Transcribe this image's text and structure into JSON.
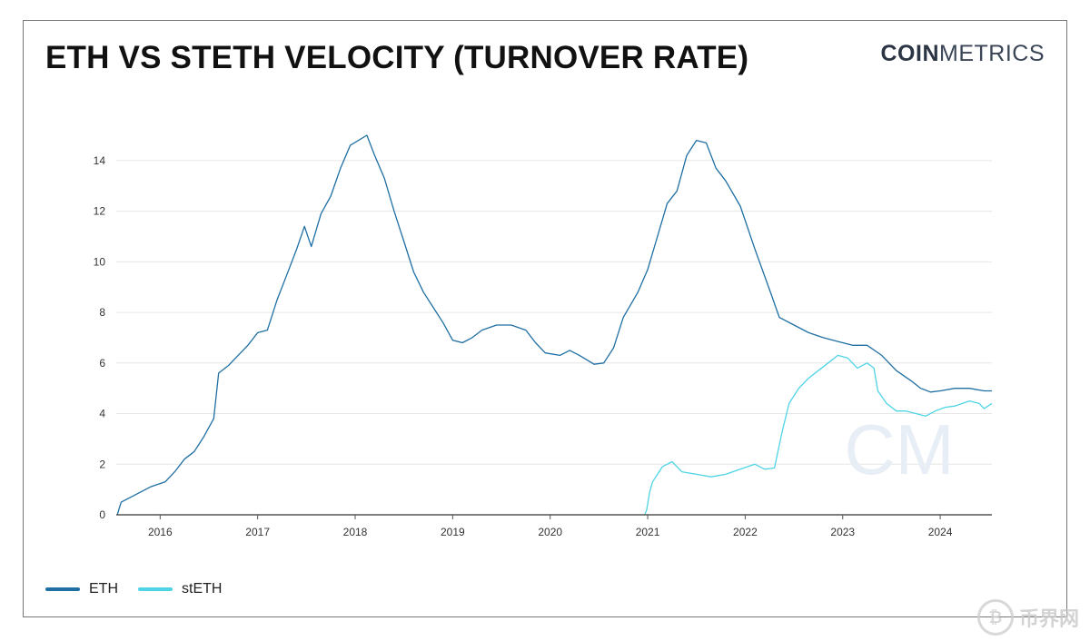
{
  "header": {
    "title": "ETH VS STETH VELOCITY (TURNOVER RATE)",
    "logo_bold": "COIN",
    "logo_light": "METRICS"
  },
  "watermarks": {
    "chart_mark": "CM",
    "corner_text": "币界网"
  },
  "colors": {
    "eth": "#1f6fa3",
    "steth": "#4fd4e6",
    "grid": "#e6e6e6",
    "axis": "#555555"
  },
  "chart_data": {
    "type": "line",
    "title": "ETH VS STETH VELOCITY (TURNOVER RATE)",
    "xlabel": "",
    "ylabel": "",
    "xlim": [
      2015.55,
      2024.53
    ],
    "ylim": [
      0,
      15
    ],
    "yticks": [
      0,
      2,
      4,
      6,
      8,
      10,
      12,
      14
    ],
    "xticks": [
      2016,
      2017,
      2018,
      2019,
      2020,
      2021,
      2022,
      2023,
      2024
    ],
    "grid": true,
    "legend_position": "bottom-left",
    "series": [
      {
        "name": "ETH",
        "color": "#1f6fa3",
        "points": [
          [
            2015.56,
            0
          ],
          [
            2015.6,
            0.5
          ],
          [
            2015.75,
            0.8
          ],
          [
            2015.9,
            1.1
          ],
          [
            2016.05,
            1.3
          ],
          [
            2016.15,
            1.7
          ],
          [
            2016.25,
            2.2
          ],
          [
            2016.35,
            2.5
          ],
          [
            2016.45,
            3.1
          ],
          [
            2016.55,
            3.8
          ],
          [
            2016.6,
            5.6
          ],
          [
            2016.7,
            5.9
          ],
          [
            2016.8,
            6.3
          ],
          [
            2016.9,
            6.7
          ],
          [
            2017.0,
            7.2
          ],
          [
            2017.1,
            7.3
          ],
          [
            2017.2,
            8.5
          ],
          [
            2017.3,
            9.5
          ],
          [
            2017.4,
            10.5
          ],
          [
            2017.48,
            11.4
          ],
          [
            2017.55,
            10.6
          ],
          [
            2017.65,
            11.9
          ],
          [
            2017.75,
            12.6
          ],
          [
            2017.85,
            13.7
          ],
          [
            2017.95,
            14.6
          ],
          [
            2018.12,
            15.0
          ],
          [
            2018.2,
            14.2
          ],
          [
            2018.3,
            13.3
          ],
          [
            2018.4,
            12.0
          ],
          [
            2018.5,
            10.8
          ],
          [
            2018.6,
            9.6
          ],
          [
            2018.7,
            8.8
          ],
          [
            2018.8,
            8.2
          ],
          [
            2018.9,
            7.6
          ],
          [
            2019.0,
            6.9
          ],
          [
            2019.1,
            6.8
          ],
          [
            2019.2,
            7.0
          ],
          [
            2019.3,
            7.3
          ],
          [
            2019.45,
            7.5
          ],
          [
            2019.6,
            7.5
          ],
          [
            2019.75,
            7.3
          ],
          [
            2019.85,
            6.8
          ],
          [
            2019.95,
            6.4
          ],
          [
            2020.1,
            6.3
          ],
          [
            2020.2,
            6.5
          ],
          [
            2020.3,
            6.3
          ],
          [
            2020.45,
            5.95
          ],
          [
            2020.55,
            6.0
          ],
          [
            2020.65,
            6.6
          ],
          [
            2020.75,
            7.8
          ],
          [
            2020.9,
            8.8
          ],
          [
            2021.0,
            9.7
          ],
          [
            2021.1,
            11.0
          ],
          [
            2021.2,
            12.3
          ],
          [
            2021.3,
            12.8
          ],
          [
            2021.4,
            14.2
          ],
          [
            2021.5,
            14.8
          ],
          [
            2021.6,
            14.7
          ],
          [
            2021.7,
            13.7
          ],
          [
            2021.8,
            13.2
          ],
          [
            2021.95,
            12.2
          ],
          [
            2022.1,
            10.5
          ],
          [
            2022.25,
            8.9
          ],
          [
            2022.35,
            7.8
          ],
          [
            2022.5,
            7.5
          ],
          [
            2022.65,
            7.2
          ],
          [
            2022.8,
            7.0
          ],
          [
            2022.95,
            6.85
          ],
          [
            2023.1,
            6.7
          ],
          [
            2023.25,
            6.7
          ],
          [
            2023.4,
            6.3
          ],
          [
            2023.55,
            5.7
          ],
          [
            2023.7,
            5.3
          ],
          [
            2023.8,
            5.0
          ],
          [
            2023.9,
            4.85
          ],
          [
            2024.0,
            4.9
          ],
          [
            2024.15,
            5.0
          ],
          [
            2024.3,
            5.0
          ],
          [
            2024.45,
            4.9
          ],
          [
            2024.53,
            4.9
          ]
        ]
      },
      {
        "name": "stETH",
        "color": "#4fd4e6",
        "points": [
          [
            2020.97,
            0
          ],
          [
            2020.99,
            0.2
          ],
          [
            2021.02,
            0.9
          ],
          [
            2021.05,
            1.3
          ],
          [
            2021.1,
            1.6
          ],
          [
            2021.15,
            1.9
          ],
          [
            2021.25,
            2.1
          ],
          [
            2021.35,
            1.7
          ],
          [
            2021.5,
            1.6
          ],
          [
            2021.65,
            1.5
          ],
          [
            2021.8,
            1.6
          ],
          [
            2021.95,
            1.8
          ],
          [
            2022.1,
            2.0
          ],
          [
            2022.2,
            1.8
          ],
          [
            2022.3,
            1.85
          ],
          [
            2022.38,
            3.3
          ],
          [
            2022.45,
            4.4
          ],
          [
            2022.55,
            5.0
          ],
          [
            2022.65,
            5.4
          ],
          [
            2022.75,
            5.7
          ],
          [
            2022.85,
            6.0
          ],
          [
            2022.95,
            6.3
          ],
          [
            2023.05,
            6.2
          ],
          [
            2023.15,
            5.8
          ],
          [
            2023.25,
            6.0
          ],
          [
            2023.32,
            5.8
          ],
          [
            2023.36,
            4.9
          ],
          [
            2023.45,
            4.4
          ],
          [
            2023.55,
            4.1
          ],
          [
            2023.65,
            4.1
          ],
          [
            2023.75,
            4.0
          ],
          [
            2023.85,
            3.9
          ],
          [
            2023.95,
            4.1
          ],
          [
            2024.05,
            4.25
          ],
          [
            2024.15,
            4.3
          ],
          [
            2024.3,
            4.5
          ],
          [
            2024.4,
            4.4
          ],
          [
            2024.45,
            4.2
          ],
          [
            2024.53,
            4.4
          ]
        ]
      }
    ]
  },
  "legend": {
    "eth_label": "ETH",
    "steth_label": "stETH"
  }
}
